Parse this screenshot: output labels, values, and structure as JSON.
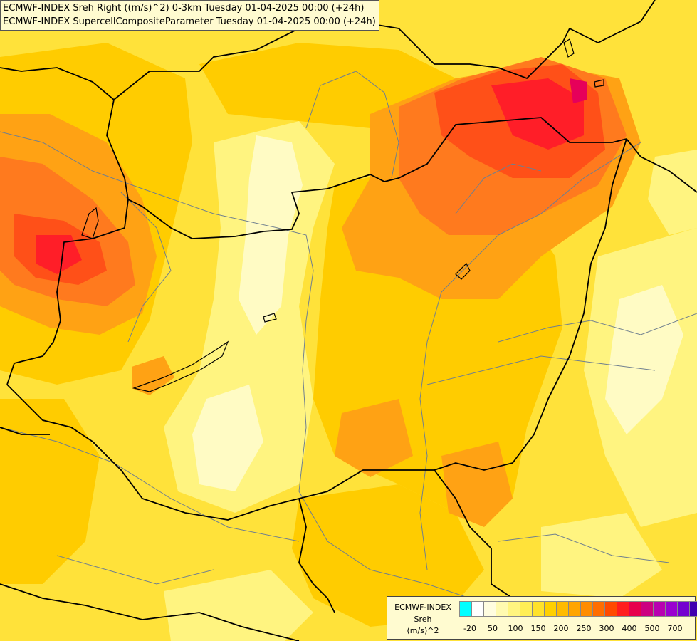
{
  "header": {
    "line1": "ECMWF-INDEX Sreh Right ((m/s)^2) 0-3km Tuesday 01-04-2025 00:00 (+24h)",
    "line2": "ECMWF-INDEX SupercellCompositeParameter Tuesday 01-04-2025 00:00 (+24h)"
  },
  "legend": {
    "title_line1": "ECMWF-INDEX",
    "title_line2": "Sreh",
    "title_line3": "(m/s)^2",
    "colors": [
      "#00ffff",
      "#ffffff",
      "#fffde0",
      "#fffab0",
      "#fff580",
      "#ffee55",
      "#ffe22a",
      "#ffd000",
      "#ffbb00",
      "#ffa500",
      "#ff8c00",
      "#ff6e00",
      "#ff4a00",
      "#ff1e1e",
      "#e6004c",
      "#cc0080",
      "#b800b0",
      "#9a00d0",
      "#7400d0",
      "#4000b0",
      "#0a0080"
    ],
    "ticks": [
      "-20",
      "50",
      "100",
      "150",
      "200",
      "250",
      "300",
      "400",
      "500",
      "700"
    ]
  },
  "map": {
    "fill_colors": {
      "light": "#fffbc4",
      "pale": "#fff480",
      "yellow": "#ffe23a",
      "gold": "#ffcc00",
      "orange": "#ffa214",
      "dark_orange": "#ff7a1e",
      "red_orange": "#ff5018",
      "red": "#ff1e28",
      "magenta": "#e6005a"
    },
    "border_color": "#000000",
    "river_color": "#6f7f8f"
  }
}
